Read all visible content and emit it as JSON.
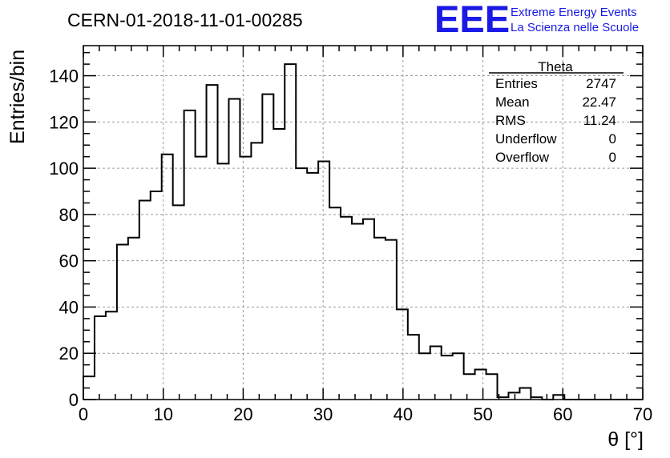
{
  "chart_data": {
    "type": "bar",
    "title": "CERN-01-2018-11-01-00285",
    "xlabel": "θ [°]",
    "ylabel": "Entries/bin",
    "xlim": [
      0,
      70
    ],
    "ylim": [
      0,
      153
    ],
    "bin_width": 1.4,
    "grid": true,
    "xticks": [
      0,
      10,
      20,
      30,
      40,
      50,
      60,
      70
    ],
    "yticks": [
      0,
      20,
      40,
      60,
      80,
      100,
      120,
      140
    ],
    "values": [
      10,
      36,
      38,
      67,
      70,
      86,
      90,
      106,
      84,
      125,
      105,
      136,
      102,
      130,
      105,
      111,
      132,
      117,
      145,
      100,
      98,
      103,
      83,
      79,
      76,
      78,
      70,
      69,
      39,
      28,
      20,
      23,
      19,
      20,
      11,
      13,
      11,
      1,
      3,
      5,
      1,
      0,
      2,
      0,
      0,
      0,
      0,
      0,
      0,
      0
    ],
    "stats_box": {
      "title": "Theta",
      "rows": [
        {
          "label": "Entries",
          "value": "2747"
        },
        {
          "label": "Mean",
          "value": "22.47"
        },
        {
          "label": "RMS",
          "value": "11.24"
        },
        {
          "label": "Underflow",
          "value": "0"
        },
        {
          "label": "Overflow",
          "value": "0"
        }
      ]
    }
  },
  "logo": {
    "mark": "EEE",
    "line1": "Extreme Energy Events",
    "line2": "La Scienza nelle Scuole",
    "color": "#1a1ae6"
  }
}
